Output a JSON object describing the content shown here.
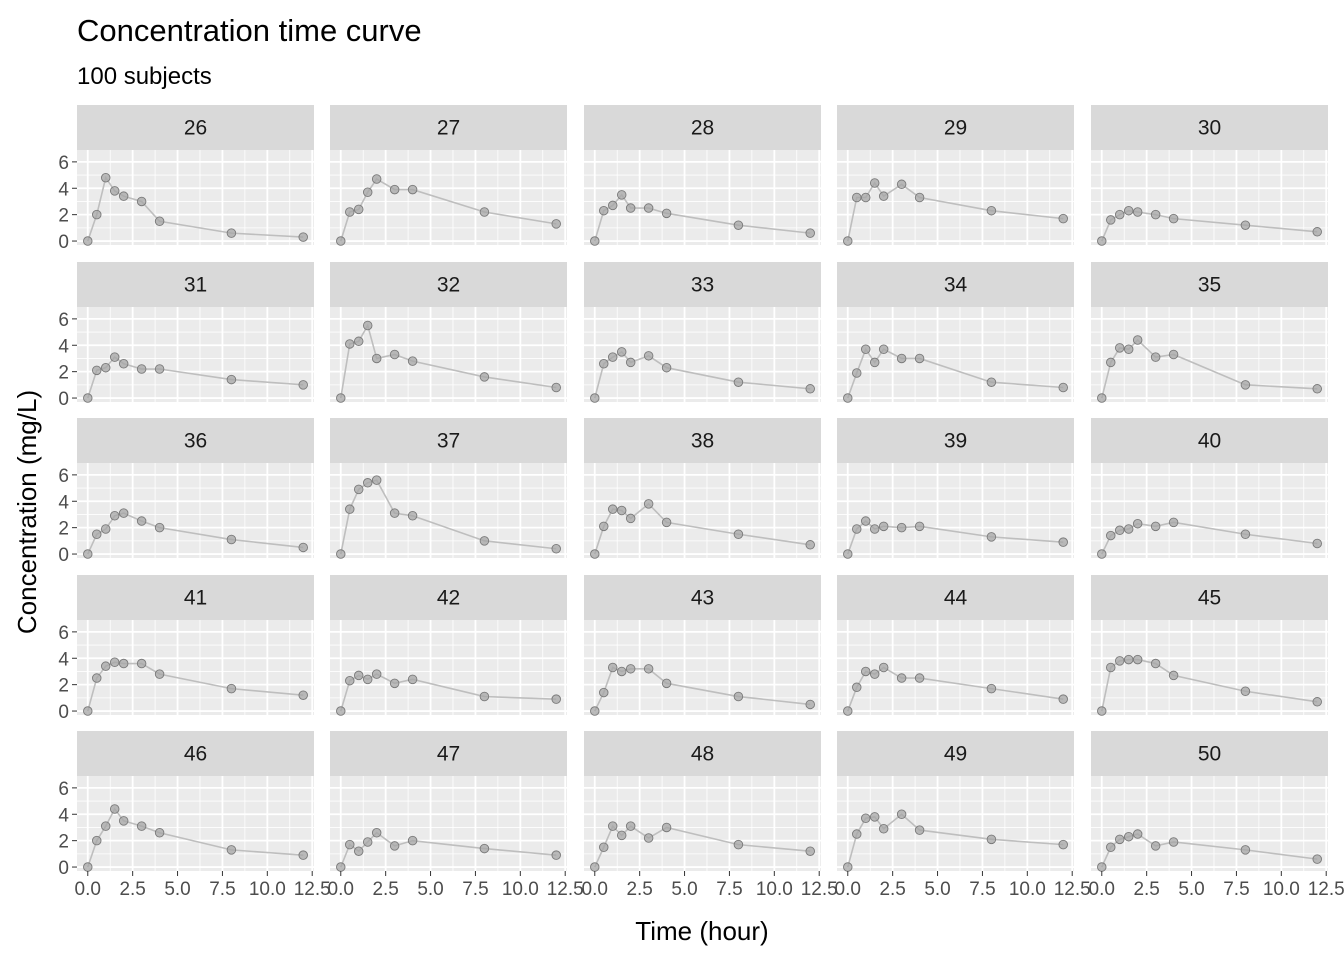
{
  "chart_data": {
    "type": "line",
    "title": "Concentration time curve",
    "subtitle": "100 subjects",
    "xlabel": "Time (hour)",
    "ylabel": "Concentration (mg/L)",
    "xlim": [
      -0.6,
      12.6
    ],
    "ylim": [
      -0.3,
      6.9
    ],
    "xticks": [
      "0.0",
      "2.5",
      "5.0",
      "7.5",
      "10.0",
      "12.5"
    ],
    "yticks": [
      "0",
      "2",
      "4",
      "6"
    ],
    "grid": true,
    "x": [
      0,
      0.5,
      1,
      1.5,
      2,
      3,
      4,
      8,
      12
    ],
    "colors": {
      "line": "#bebebe",
      "point_fill": "#a6a6a6",
      "point_stroke": "#7a7a7a",
      "panel": "#ebebeb",
      "strip": "#d9d9d9"
    },
    "panels": [
      {
        "id": "26",
        "values": [
          0,
          2.0,
          4.8,
          3.8,
          3.4,
          3.0,
          1.5,
          0.6,
          0.3
        ]
      },
      {
        "id": "27",
        "values": [
          0,
          2.2,
          2.4,
          3.7,
          4.7,
          3.9,
          3.9,
          2.2,
          1.3
        ]
      },
      {
        "id": "28",
        "values": [
          0,
          2.3,
          2.7,
          3.5,
          2.5,
          2.5,
          2.1,
          1.2,
          0.6
        ]
      },
      {
        "id": "29",
        "values": [
          0,
          3.3,
          3.3,
          4.4,
          3.4,
          4.3,
          3.3,
          2.3,
          1.7
        ]
      },
      {
        "id": "30",
        "values": [
          0,
          1.6,
          2.0,
          2.3,
          2.2,
          2.0,
          1.7,
          1.2,
          0.7
        ]
      },
      {
        "id": "31",
        "values": [
          0,
          2.1,
          2.3,
          3.1,
          2.6,
          2.2,
          2.2,
          1.4,
          1.0
        ]
      },
      {
        "id": "32",
        "values": [
          0,
          4.1,
          4.3,
          5.5,
          3.0,
          3.3,
          2.8,
          1.6,
          0.8
        ]
      },
      {
        "id": "33",
        "values": [
          0,
          2.6,
          3.1,
          3.5,
          2.7,
          3.2,
          2.3,
          1.2,
          0.7
        ]
      },
      {
        "id": "34",
        "values": [
          0,
          1.9,
          3.7,
          2.7,
          3.7,
          3.0,
          3.0,
          1.2,
          0.8
        ]
      },
      {
        "id": "35",
        "values": [
          0,
          2.7,
          3.8,
          3.7,
          4.4,
          3.1,
          3.3,
          1.0,
          0.7
        ]
      },
      {
        "id": "36",
        "values": [
          0,
          1.5,
          1.9,
          2.9,
          3.1,
          2.5,
          2.0,
          1.1,
          0.5
        ]
      },
      {
        "id": "37",
        "values": [
          0,
          3.4,
          4.9,
          5.4,
          5.6,
          3.1,
          2.9,
          1.0,
          0.4
        ]
      },
      {
        "id": "38",
        "values": [
          0,
          2.1,
          3.4,
          3.3,
          2.7,
          3.8,
          2.4,
          1.5,
          0.7
        ]
      },
      {
        "id": "39",
        "values": [
          0,
          1.9,
          2.5,
          1.9,
          2.1,
          2.0,
          2.1,
          1.3,
          0.9
        ]
      },
      {
        "id": "40",
        "values": [
          0,
          1.4,
          1.8,
          1.9,
          2.3,
          2.1,
          2.4,
          1.5,
          0.8
        ]
      },
      {
        "id": "41",
        "values": [
          0,
          2.5,
          3.4,
          3.7,
          3.6,
          3.6,
          2.8,
          1.7,
          1.2
        ]
      },
      {
        "id": "42",
        "values": [
          0,
          2.3,
          2.7,
          2.4,
          2.8,
          2.1,
          2.4,
          1.1,
          0.9
        ]
      },
      {
        "id": "43",
        "values": [
          0,
          1.4,
          3.3,
          3.0,
          3.2,
          3.2,
          2.1,
          1.1,
          0.5
        ]
      },
      {
        "id": "44",
        "values": [
          0,
          1.8,
          3.0,
          2.8,
          3.3,
          2.5,
          2.5,
          1.7,
          0.9
        ]
      },
      {
        "id": "45",
        "values": [
          0,
          3.3,
          3.8,
          3.9,
          3.9,
          3.6,
          2.7,
          1.5,
          0.7
        ]
      },
      {
        "id": "46",
        "values": [
          0,
          2.0,
          3.1,
          4.4,
          3.5,
          3.1,
          2.6,
          1.3,
          0.9
        ]
      },
      {
        "id": "47",
        "values": [
          0,
          1.7,
          1.2,
          1.9,
          2.6,
          1.6,
          2.0,
          1.4,
          0.9
        ]
      },
      {
        "id": "48",
        "values": [
          0,
          1.5,
          3.1,
          2.4,
          3.1,
          2.2,
          3.0,
          1.7,
          1.2
        ]
      },
      {
        "id": "49",
        "values": [
          0,
          2.5,
          3.7,
          3.8,
          2.9,
          4.0,
          2.8,
          2.1,
          1.7
        ]
      },
      {
        "id": "50",
        "values": [
          0,
          1.5,
          2.1,
          2.3,
          2.5,
          1.6,
          1.9,
          1.3,
          0.6
        ]
      }
    ]
  }
}
